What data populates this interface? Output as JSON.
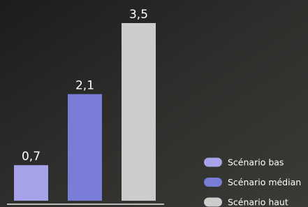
{
  "chart_data": {
    "type": "bar",
    "categories": [
      null
    ],
    "series": [
      {
        "name": "Scénario bas",
        "color": "#a6a3ea",
        "values": [
          0.7
        ],
        "value_labels": [
          "0,7"
        ]
      },
      {
        "name": "Scénario médian",
        "color": "#7a7dd8",
        "values": [
          2.1
        ],
        "value_labels": [
          "2,1"
        ]
      },
      {
        "name": "Scénario haut",
        "color": "#cccccc",
        "values": [
          3.5
        ],
        "value_labels": [
          "3,5"
        ]
      }
    ],
    "ylim": [
      0,
      3.5
    ],
    "legend": "bottom-right"
  }
}
